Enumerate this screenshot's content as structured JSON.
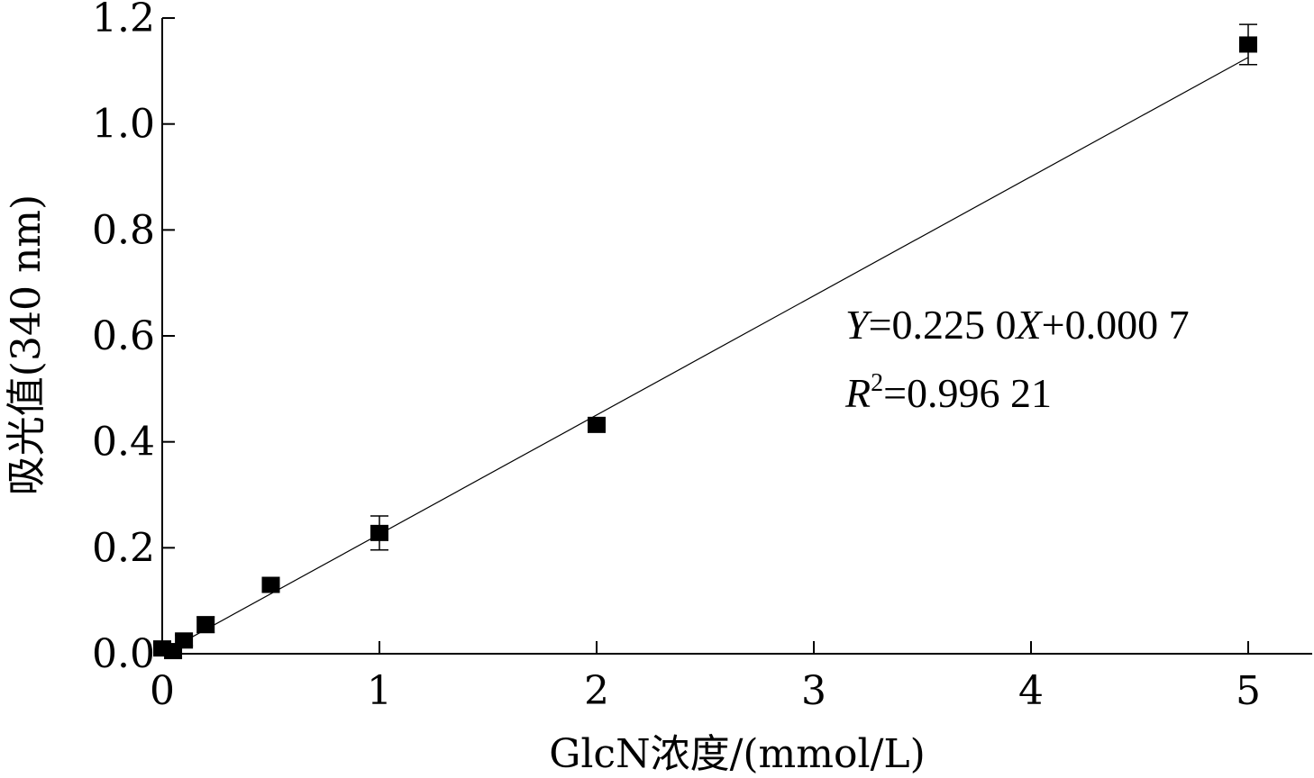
{
  "chart_data": {
    "type": "scatter",
    "title": "",
    "xlabel": "GlcN浓度/(mmol/L)",
    "ylabel": "吸光值(340 nm)",
    "xlim": [
      0,
      5.3
    ],
    "ylim": [
      0,
      1.2
    ],
    "grid": false,
    "x_ticks": [
      0,
      1,
      2,
      3,
      4,
      5
    ],
    "x_tick_labels": [
      "0",
      "1",
      "2",
      "3",
      "4",
      "5"
    ],
    "y_ticks": [
      0,
      0.2,
      0.4,
      0.6,
      0.8,
      1.0,
      1.2
    ],
    "y_tick_labels": [
      "0.0",
      "0.2",
      "0.4",
      "0.6",
      "0.8",
      "1.0",
      "1.2"
    ],
    "series": [
      {
        "marker": "square",
        "color": "#000000",
        "x": [
          0,
          0.05,
          0.1,
          0.2,
          0.5,
          1,
          2,
          5
        ],
        "y": [
          0.01,
          0.005,
          0.025,
          0.055,
          0.13,
          0.228,
          0.432,
          1.15
        ],
        "error": [
          0.012,
          0.005,
          0.01,
          0.015,
          0.005,
          0.032,
          0.01,
          0.038
        ]
      }
    ],
    "fit_line": {
      "slope": 0.225,
      "intercept": 0.0007,
      "x_range": [
        0,
        5
      ]
    },
    "annotations": {
      "equation": {
        "y_var": "Y",
        "mid": "=0.225 0",
        "x_var": "X",
        "tail": "+0.000 7"
      },
      "r_squared": {
        "var": "R",
        "sup": "2",
        "value": "=0.996 21"
      }
    }
  }
}
